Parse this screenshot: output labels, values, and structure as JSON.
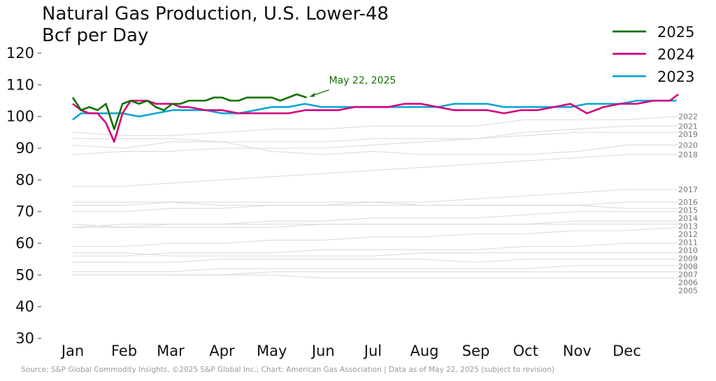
{
  "chart_data": {
    "type": "line",
    "title": "Natural Gas Production, U.S. Lower-48",
    "subtitle": "Bcf per Day",
    "ylim": [
      30,
      120
    ],
    "yticks": [
      30,
      40,
      50,
      60,
      70,
      80,
      90,
      100,
      110,
      120
    ],
    "months": [
      "Jan",
      "Feb",
      "Mar",
      "Apr",
      "May",
      "Jun",
      "Jul",
      "Aug",
      "Sep",
      "Oct",
      "Nov",
      "Dec"
    ],
    "legend_position": "top-right",
    "grid": false,
    "series": [
      {
        "name": "2025",
        "color": "#117000",
        "x": [
          1,
          6,
          11,
          16,
          21,
          26,
          31,
          36,
          41,
          46,
          51,
          56,
          61,
          66,
          71,
          76,
          81,
          86,
          91,
          96,
          101,
          106,
          111,
          116,
          121,
          126,
          131,
          136,
          142
        ],
        "values": [
          106,
          102,
          103,
          102,
          104,
          96,
          104,
          105,
          104,
          105,
          103,
          102,
          104,
          104,
          105,
          105,
          105,
          106,
          106,
          105,
          105,
          106,
          106,
          106,
          106,
          105,
          106,
          107,
          106
        ]
      },
      {
        "name": "2024",
        "color": "#d4007a",
        "x": [
          1,
          6,
          11,
          16,
          21,
          26,
          31,
          36,
          41,
          46,
          51,
          56,
          61,
          66,
          71,
          81,
          91,
          101,
          111,
          121,
          131,
          141,
          151,
          161,
          171,
          181,
          191,
          201,
          211,
          221,
          231,
          241,
          251,
          261,
          271,
          281,
          291,
          301,
          311,
          321,
          331,
          341,
          351,
          361,
          366
        ],
        "values": [
          104,
          102,
          101,
          101,
          98,
          92,
          101,
          105,
          105,
          105,
          104,
          104,
          104,
          103,
          103,
          102,
          102,
          101,
          101,
          101,
          101,
          102,
          102,
          102,
          103,
          103,
          103,
          104,
          104,
          103,
          102,
          102,
          102,
          101,
          102,
          102,
          103,
          104,
          101,
          103,
          104,
          104,
          105,
          105,
          107
        ]
      },
      {
        "name": "2023",
        "color": "#0aa4d8",
        "x": [
          1,
          6,
          11,
          16,
          21,
          31,
          41,
          51,
          61,
          71,
          81,
          91,
          101,
          111,
          121,
          131,
          141,
          151,
          161,
          171,
          181,
          191,
          201,
          211,
          221,
          231,
          241,
          251,
          261,
          271,
          281,
          291,
          301,
          311,
          321,
          331,
          341,
          351,
          361,
          365
        ],
        "values": [
          99,
          101,
          101,
          101,
          101,
          101,
          100,
          101,
          102,
          102,
          102,
          101,
          101,
          102,
          103,
          103,
          104,
          103,
          103,
          103,
          103,
          103,
          103,
          103,
          103,
          104,
          104,
          104,
          103,
          103,
          103,
          103,
          103,
          104,
          104,
          104,
          105,
          105,
          105,
          105
        ]
      }
    ],
    "history": [
      {
        "name": "2022",
        "values": [
          95,
          94,
          94,
          95,
          96,
          96,
          97,
          97,
          97,
          99,
          99,
          99,
          100
        ]
      },
      {
        "name": "2021",
        "values": [
          91,
          90,
          92,
          92,
          92,
          92,
          93,
          93,
          93,
          95,
          96,
          97,
          97
        ]
      },
      {
        "name": "2019",
        "values": [
          88,
          89,
          89,
          90,
          90,
          90,
          91,
          92,
          93,
          94,
          95,
          95,
          95
        ]
      },
      {
        "name": "2020",
        "values": [
          93,
          93,
          93,
          92,
          89,
          88,
          89,
          88,
          88,
          88,
          89,
          91,
          91
        ]
      },
      {
        "name": "2018",
        "values": [
          78,
          78,
          79,
          80,
          81,
          82,
          83,
          84,
          85,
          86,
          87,
          88,
          88
        ]
      },
      {
        "name": "2017",
        "values": [
          70,
          70,
          71,
          71,
          72,
          72,
          73,
          73,
          74,
          75,
          76,
          77,
          77
        ]
      },
      {
        "name": "2016",
        "values": [
          73,
          73,
          73,
          72,
          72,
          72,
          72,
          72,
          72,
          72,
          72,
          73,
          73
        ]
      },
      {
        "name": "2015",
        "values": [
          72,
          72,
          73,
          73,
          73,
          73,
          73,
          72,
          72,
          72,
          72,
          71,
          71
        ]
      },
      {
        "name": "2014",
        "values": [
          66,
          65,
          66,
          66,
          67,
          67,
          68,
          68,
          68,
          69,
          70,
          70,
          70
        ]
      },
      {
        "name": "2013",
        "values": [
          65,
          65,
          65,
          65,
          65,
          66,
          66,
          66,
          66,
          66,
          67,
          67,
          67
        ]
      },
      {
        "name": "2012",
        "values": [
          65,
          66,
          66,
          66,
          66,
          66,
          66,
          66,
          66,
          66,
          66,
          66,
          66
        ]
      },
      {
        "name": "2011",
        "values": [
          59,
          59,
          60,
          60,
          61,
          61,
          62,
          62,
          63,
          63,
          64,
          64,
          65
        ]
      },
      {
        "name": "2010",
        "values": [
          56,
          56,
          57,
          57,
          57,
          58,
          58,
          58,
          58,
          59,
          59,
          60,
          60
        ]
      },
      {
        "name": "2009",
        "values": [
          57,
          57,
          56,
          56,
          56,
          56,
          56,
          57,
          57,
          57,
          57,
          57,
          57
        ]
      },
      {
        "name": "2008",
        "values": [
          54,
          54,
          54,
          55,
          55,
          55,
          55,
          55,
          54,
          55,
          55,
          55,
          55
        ]
      },
      {
        "name": "2007",
        "values": [
          51,
          51,
          51,
          52,
          52,
          52,
          52,
          52,
          52,
          52,
          53,
          53,
          53
        ]
      },
      {
        "name": "2006",
        "values": [
          50,
          50,
          50,
          50,
          51,
          51,
          51,
          51,
          51,
          51,
          51,
          51,
          51
        ]
      },
      {
        "name": "2005",
        "values": [
          50,
          50,
          50,
          50,
          50,
          49,
          49,
          49,
          49,
          49,
          49,
          49,
          49
        ]
      }
    ],
    "annotation": {
      "text": "May 22, 2025",
      "color": "#117000",
      "x": 142,
      "y": 106
    }
  },
  "source": "Source: S&P Global Commodity Insights, ©2025 S&P Global Inc.; Chart: American Gas Association | Data as of May 22, 2025 (subject to revision)"
}
